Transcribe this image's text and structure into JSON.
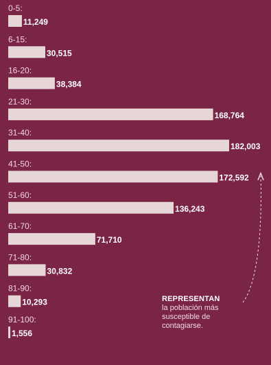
{
  "chart_data": {
    "type": "bar",
    "orientation": "horizontal",
    "categories": [
      "0-5:",
      "6-15:",
      "16-20:",
      "21-30:",
      "31-40:",
      "41-50:",
      "51-60:",
      "61-70:",
      "71-80:",
      "81-90:",
      "91-100:"
    ],
    "values": [
      11249,
      30515,
      38384,
      168764,
      182003,
      172592,
      136243,
      71710,
      30832,
      10293,
      1556
    ],
    "value_labels": [
      "11,249",
      "30,515",
      "38,384",
      "168,764",
      "182,003",
      "172,592",
      "136,243",
      "71,710",
      "30,832",
      "10,293",
      "1,556"
    ],
    "xlim": [
      0,
      182003
    ],
    "grid": false,
    "legend": "none"
  },
  "annotation": {
    "title": "REPRESENTAN",
    "body": "la población más\nsusceptible de\ncontagiarse."
  },
  "colors": {
    "background": "#7a2446",
    "bar": "#e7d6d8",
    "label_text": "#f1d6df",
    "value_text": "#ffffff"
  }
}
